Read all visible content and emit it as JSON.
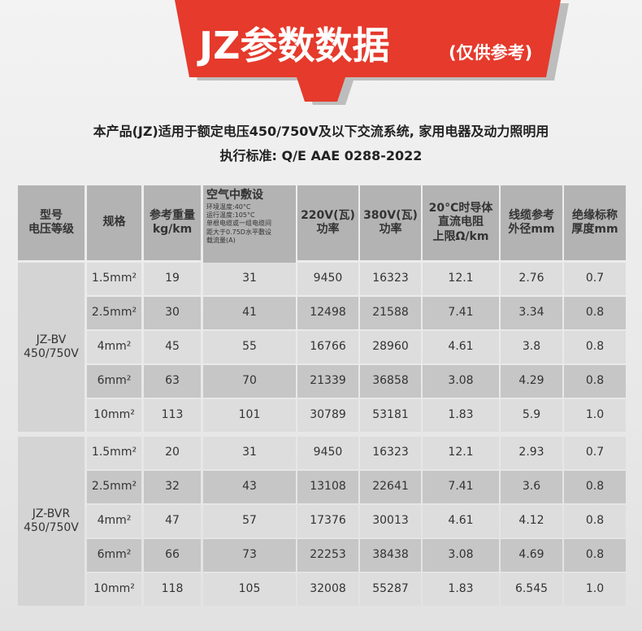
{
  "header": {
    "title": "JZ参数数据",
    "note": "(仅供参考)"
  },
  "intro": {
    "line1": "本产品(JZ)适用于额定电压450/750V及以下交流系统, 家用电器及动力照明用",
    "line2": "执行标准: Q/E AAE 0288-2022"
  },
  "table": {
    "columns": [
      [
        "型号",
        "电压等级"
      ],
      [
        "规格"
      ],
      [
        "参考重量",
        "kg/km"
      ],
      {
        "title": "空气中敷设",
        "notes": [
          "环境温度:40°C",
          "运行温度:105°C",
          "单根电缆或一组电缆间",
          "距大于0.75D水平敷设",
          "载流量(A)"
        ]
      },
      [
        "220V(瓦)",
        "功率"
      ],
      [
        "380V(瓦)",
        "功率"
      ],
      [
        "20°C时导体",
        "直流电阻",
        "上限Ω/km"
      ],
      [
        "线缆参考",
        "外径mm"
      ],
      [
        "绝缘标称",
        "厚度mm"
      ]
    ],
    "groups": [
      {
        "label": [
          "JZ-BV",
          "450/750V"
        ],
        "rows": [
          [
            "1.5mm²",
            "19",
            "31",
            "9450",
            "16323",
            "12.1",
            "2.76",
            "0.7"
          ],
          [
            "2.5mm²",
            "30",
            "41",
            "12498",
            "21588",
            "7.41",
            "3.34",
            "0.8"
          ],
          [
            "4mm²",
            "45",
            "55",
            "16766",
            "28960",
            "4.61",
            "3.8",
            "0.8"
          ],
          [
            "6mm²",
            "63",
            "70",
            "21339",
            "36858",
            "3.08",
            "4.29",
            "0.8"
          ],
          [
            "10mm²",
            "113",
            "101",
            "30789",
            "53181",
            "1.83",
            "5.9",
            "1.0"
          ]
        ]
      },
      {
        "label": [
          "JZ-BVR",
          "450/750V"
        ],
        "rows": [
          [
            "1.5mm²",
            "20",
            "31",
            "9450",
            "16323",
            "12.1",
            "2.93",
            "0.7"
          ],
          [
            "2.5mm²",
            "32",
            "43",
            "13108",
            "22641",
            "7.41",
            "3.6",
            "0.8"
          ],
          [
            "4mm²",
            "47",
            "57",
            "17376",
            "30013",
            "4.61",
            "4.12",
            "0.8"
          ],
          [
            "6mm²",
            "66",
            "73",
            "22253",
            "38438",
            "3.08",
            "4.69",
            "0.8"
          ],
          [
            "10mm²",
            "118",
            "105",
            "32008",
            "55287",
            "1.83",
            "6.545",
            "1.0"
          ]
        ]
      }
    ]
  }
}
